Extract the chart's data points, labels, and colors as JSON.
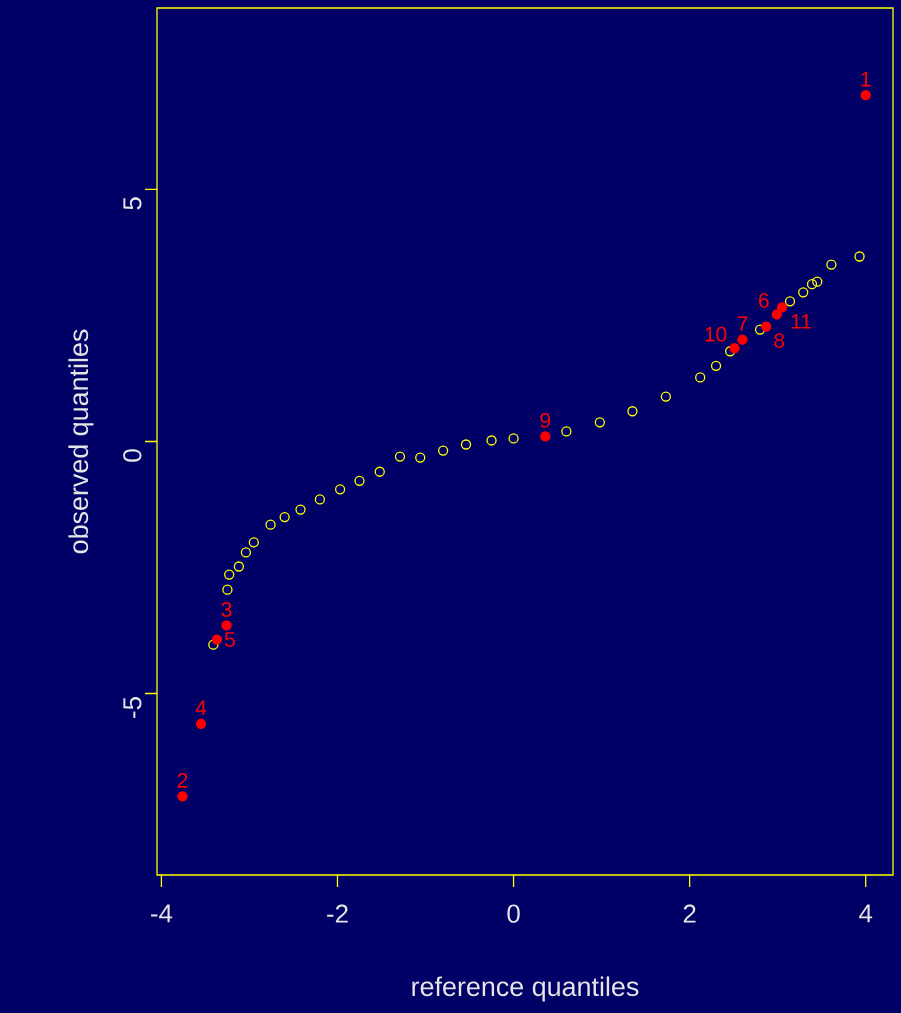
{
  "chart_data": {
    "type": "scatter",
    "xlabel": "reference quantiles",
    "ylabel": "observed quantiles",
    "xlim": [
      -4.05,
      4.31
    ],
    "ylim": [
      -8.6,
      8.6
    ],
    "xticks": [
      -4,
      -2,
      0,
      2,
      4
    ],
    "yticks": [
      -5,
      0,
      5
    ],
    "marker": "circle",
    "series": [
      {
        "color": "#ffff00",
        "x": [
          -3.41,
          -3.25,
          -3.23,
          -3.12,
          -3.04,
          -2.95,
          -2.76,
          -2.6,
          -2.42,
          -2.2,
          -1.97,
          -1.75,
          -1.52,
          -1.29,
          -1.06,
          -0.8,
          -0.54,
          -0.25,
          0.0,
          0.6,
          0.98,
          1.35,
          1.73,
          2.12,
          2.3,
          2.46,
          2.8,
          3.14,
          3.29,
          3.39,
          3.45,
          3.61,
          3.93
        ],
        "values": [
          -4.03,
          -2.94,
          -2.64,
          -2.48,
          -2.2,
          -2.0,
          -1.65,
          -1.5,
          -1.35,
          -1.15,
          -0.95,
          -0.78,
          -0.6,
          -0.3,
          -0.32,
          -0.18,
          -0.06,
          0.02,
          0.06,
          0.2,
          0.38,
          0.6,
          0.89,
          1.27,
          1.5,
          1.79,
          2.22,
          2.78,
          2.96,
          3.12,
          3.17,
          3.51,
          3.67
        ]
      },
      {
        "color": "#ff0000",
        "marker": "filled circle",
        "x": [
          4.0,
          -3.76,
          -3.26,
          -3.55,
          -3.37,
          2.99,
          2.6,
          2.87,
          0.36,
          2.51,
          3.05
        ],
        "values": [
          6.87,
          -7.04,
          -3.65,
          -5.6,
          -3.93,
          2.52,
          2.02,
          2.28,
          0.1,
          1.85,
          2.66
        ]
      }
    ],
    "annotations": [
      {
        "text": "1",
        "x": 4.0,
        "y": 6.87
      },
      {
        "text": "2",
        "x": -3.76,
        "y": -7.04
      },
      {
        "text": "3",
        "x": -3.26,
        "y": -3.65
      },
      {
        "text": "4",
        "x": -3.55,
        "y": -5.6
      },
      {
        "text": "5",
        "x": -3.37,
        "y": -3.93
      },
      {
        "text": "6",
        "x": 2.99,
        "y": 2.52
      },
      {
        "text": "7",
        "x": 2.6,
        "y": 2.02
      },
      {
        "text": "8",
        "x": 2.87,
        "y": 2.28
      },
      {
        "text": "9",
        "x": 0.36,
        "y": 0.1
      },
      {
        "text": "10",
        "x": 2.51,
        "y": 1.85
      },
      {
        "text": "11",
        "x": 3.05,
        "y": 2.66
      }
    ]
  }
}
